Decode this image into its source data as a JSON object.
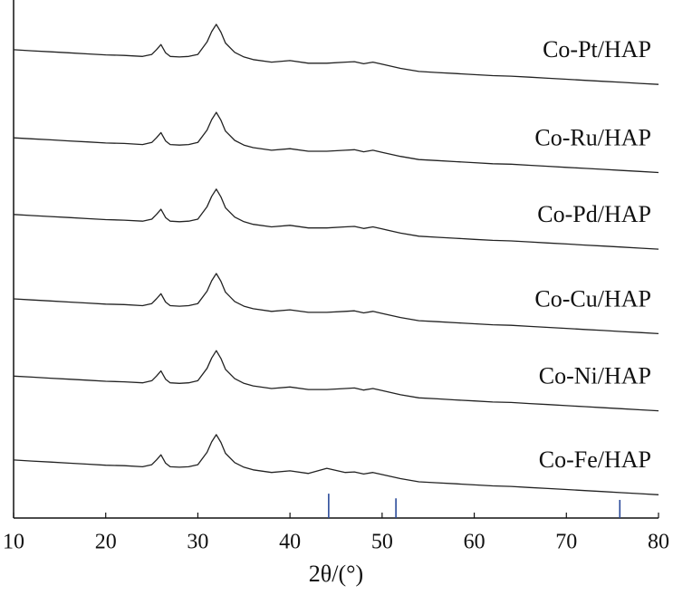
{
  "chart_data": {
    "type": "line",
    "xlabel": "2θ/(°)",
    "xlim": [
      10,
      80
    ],
    "xticks": [
      10,
      20,
      30,
      40,
      50,
      60,
      70,
      80
    ],
    "ylim": [
      0,
      100
    ],
    "x": [
      10,
      12,
      14,
      16,
      18,
      20,
      22,
      24,
      25,
      25.5,
      26,
      26.5,
      27,
      28,
      29,
      30,
      31,
      31.5,
      32,
      32.5,
      33,
      34,
      35,
      36,
      38,
      40,
      42,
      44,
      46,
      47,
      48,
      49,
      50,
      52,
      54,
      56,
      58,
      60,
      62,
      64,
      66,
      68,
      70,
      72,
      74,
      76,
      78,
      80
    ],
    "series": [
      {
        "name": "Co-Pt/HAP",
        "color": "#222222",
        "values": [
          90.4,
          90.2,
          90.0,
          89.8,
          89.6,
          89.4,
          89.3,
          89.1,
          89.5,
          90.4,
          91.4,
          89.8,
          89.1,
          89.0,
          89.1,
          89.5,
          91.9,
          93.9,
          95.3,
          93.8,
          91.7,
          89.9,
          89.0,
          88.5,
          88.0,
          88.3,
          87.8,
          87.8,
          88.0,
          88.1,
          87.7,
          88.0,
          87.6,
          86.8,
          86.2,
          86.0,
          85.8,
          85.6,
          85.4,
          85.3,
          85.1,
          84.9,
          84.7,
          84.5,
          84.3,
          84.1,
          83.9,
          83.7
        ]
      },
      {
        "name": "Co-Ru/HAP",
        "color": "#222222",
        "values": [
          73.4,
          73.2,
          73.0,
          72.8,
          72.6,
          72.4,
          72.3,
          72.1,
          72.5,
          73.4,
          74.4,
          72.8,
          72.1,
          72.0,
          72.1,
          72.5,
          74.9,
          76.9,
          78.3,
          76.8,
          74.7,
          72.9,
          72.0,
          71.5,
          71.0,
          71.3,
          70.8,
          70.8,
          71.0,
          71.1,
          70.7,
          71.0,
          70.6,
          69.8,
          69.2,
          69.0,
          68.8,
          68.6,
          68.4,
          68.3,
          68.1,
          67.9,
          67.7,
          67.5,
          67.3,
          67.1,
          66.9,
          66.7
        ]
      },
      {
        "name": "Co-Pd/HAP",
        "color": "#222222",
        "values": [
          58.6,
          58.4,
          58.2,
          58.0,
          57.8,
          57.6,
          57.5,
          57.3,
          57.7,
          58.6,
          59.6,
          58.0,
          57.3,
          57.2,
          57.3,
          57.7,
          60.1,
          62.1,
          63.5,
          62.0,
          59.9,
          58.1,
          57.2,
          56.7,
          56.2,
          56.5,
          56.0,
          56.0,
          56.2,
          56.3,
          55.9,
          56.2,
          55.8,
          55.0,
          54.4,
          54.2,
          54.0,
          53.8,
          53.6,
          53.5,
          53.3,
          53.1,
          52.9,
          52.7,
          52.5,
          52.3,
          52.1,
          51.9
        ]
      },
      {
        "name": "Co-Cu/HAP",
        "color": "#222222",
        "values": [
          42.3,
          42.1,
          41.9,
          41.7,
          41.5,
          41.3,
          41.2,
          41.0,
          41.4,
          42.3,
          43.3,
          41.7,
          41.0,
          40.9,
          41.0,
          41.4,
          43.8,
          45.8,
          47.2,
          45.7,
          43.6,
          41.8,
          40.9,
          40.4,
          39.9,
          40.2,
          39.7,
          39.7,
          39.9,
          40.0,
          39.6,
          39.9,
          39.5,
          38.7,
          38.1,
          37.9,
          37.7,
          37.5,
          37.3,
          37.2,
          37.0,
          36.8,
          36.6,
          36.4,
          36.2,
          36.0,
          35.8,
          35.6
        ]
      },
      {
        "name": "Co-Ni/HAP",
        "color": "#222222",
        "values": [
          27.4,
          27.2,
          27.0,
          26.8,
          26.6,
          26.4,
          26.3,
          26.1,
          26.5,
          27.4,
          28.4,
          26.8,
          26.1,
          26.0,
          26.1,
          26.5,
          28.9,
          30.9,
          32.3,
          30.8,
          28.7,
          26.9,
          26.0,
          25.5,
          25.0,
          25.3,
          24.8,
          24.8,
          25.0,
          25.1,
          24.7,
          25.0,
          24.6,
          23.8,
          23.2,
          23.0,
          22.8,
          22.6,
          22.4,
          22.3,
          22.1,
          21.9,
          21.7,
          21.5,
          21.3,
          21.1,
          20.9,
          20.7
        ]
      },
      {
        "name": "Co-Fe/HAP",
        "color": "#222222",
        "values": [
          11.2,
          11.0,
          10.8,
          10.6,
          10.4,
          10.2,
          10.1,
          9.9,
          10.3,
          11.2,
          12.2,
          10.6,
          9.9,
          9.8,
          9.9,
          10.3,
          12.7,
          14.7,
          16.1,
          14.6,
          12.5,
          10.7,
          9.8,
          9.3,
          8.8,
          9.1,
          8.6,
          9.6,
          8.8,
          8.9,
          8.5,
          8.8,
          8.4,
          7.6,
          7.0,
          6.8,
          6.6,
          6.4,
          6.2,
          6.1,
          5.9,
          5.7,
          5.5,
          5.3,
          5.1,
          4.9,
          4.7,
          4.5
        ]
      }
    ],
    "reference_lines": {
      "color": "#2a4a9a",
      "x": [
        44.2,
        51.5,
        75.8
      ],
      "values": [
        4.7,
        3.8,
        3.5
      ]
    }
  }
}
